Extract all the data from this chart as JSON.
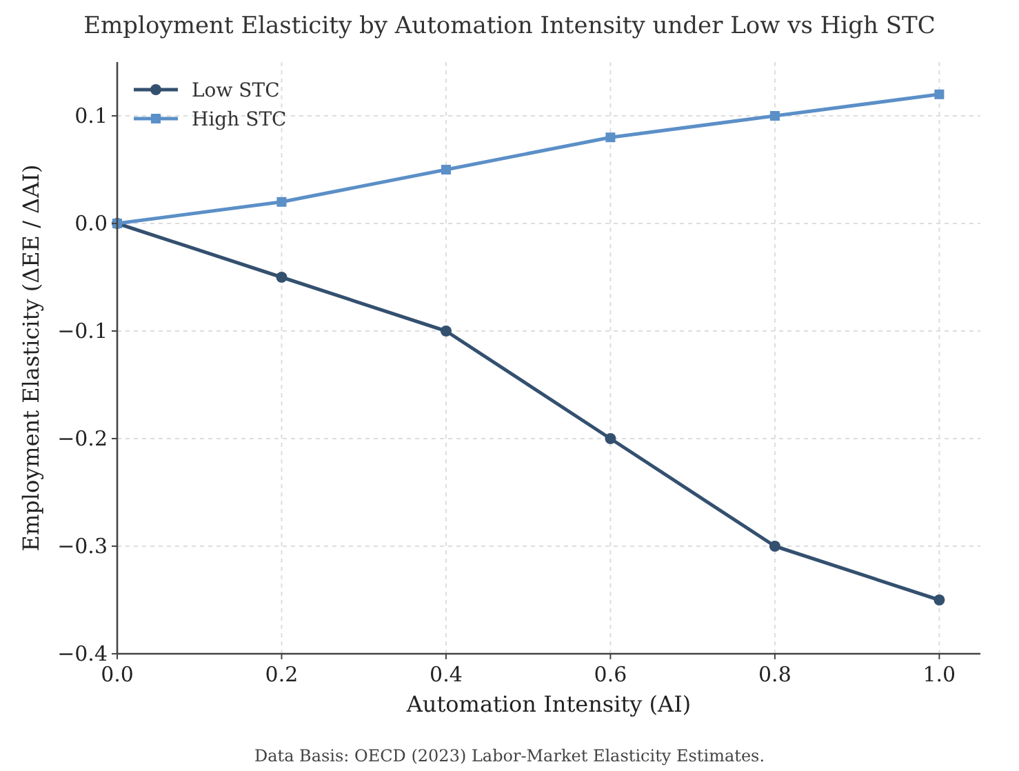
{
  "chart_data": {
    "type": "line",
    "title": "Employment Elasticity by Automation Intensity under Low vs High STC",
    "xlabel": "Automation Intensity (AI)",
    "ylabel": "Employment Elasticity (ΔEE / ΔAI)",
    "x": [
      0,
      0.2,
      0.4,
      0.6,
      0.8,
      1.0
    ],
    "series": [
      {
        "name": "Low STC",
        "color": "#34506f",
        "values": [
          0,
          -0.05,
          -0.1,
          -0.2,
          -0.3,
          -0.35
        ],
        "marker": "circle"
      },
      {
        "name": "High STC",
        "color": "#5b8fc7",
        "values": [
          0,
          0.02,
          0.05,
          0.08,
          0.1,
          0.12
        ],
        "marker": "square"
      }
    ],
    "xlim": [
      0,
      1.05
    ],
    "ylim": [
      -0.4,
      0.15
    ],
    "xticks": [
      {
        "value": 0,
        "label": "0.0"
      },
      0.2,
      0.4,
      0.6,
      0.8,
      {
        "value": 1,
        "label": "1.0"
      }
    ],
    "yticks": [
      {
        "value": -0.4,
        "label": "−0.4"
      },
      {
        "value": -0.3,
        "label": "−0.3"
      },
      {
        "value": -0.2,
        "label": "−0.2"
      },
      {
        "value": -0.1,
        "label": "−0.1"
      },
      {
        "value": 0,
        "label": "0.0"
      },
      0.1
    ],
    "grid": true,
    "legend": "top left",
    "line_style": "solid",
    "annotations": [
      "Data Basis: OECD (2023) Labor-Market Elasticity Estimates."
    ]
  }
}
